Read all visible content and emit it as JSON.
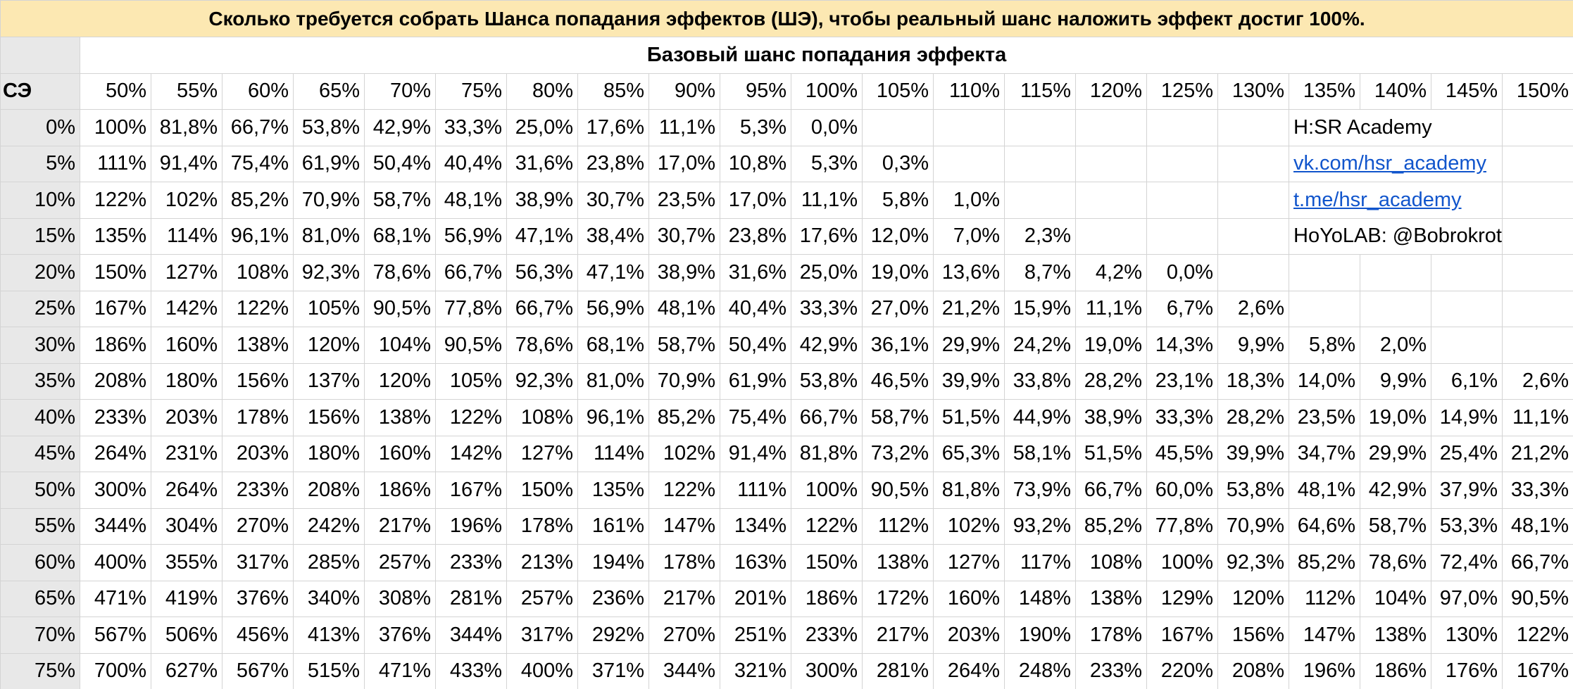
{
  "title": "Сколько требуется собрать Шанса попадания эффектов (ШЭ), чтобы реальный шанс наложить эффект достиг 100%.",
  "table": {
    "column_group": "Базовый шанс попадания эффекта",
    "corner": "СЭ",
    "columns": [
      "50%",
      "55%",
      "60%",
      "65%",
      "70%",
      "75%",
      "80%",
      "85%",
      "90%",
      "95%",
      "100%",
      "105%",
      "110%",
      "115%",
      "120%",
      "125%",
      "130%",
      "135%",
      "140%",
      "145%",
      "150%"
    ],
    "rows": [
      {
        "label": "0%",
        "values": [
          "100%",
          "81,8%",
          "66,7%",
          "53,8%",
          "42,9%",
          "33,3%",
          "25,0%",
          "17,6%",
          "11,1%",
          "5,3%",
          "0,0%"
        ]
      },
      {
        "label": "5%",
        "values": [
          "111%",
          "91,4%",
          "75,4%",
          "61,9%",
          "50,4%",
          "40,4%",
          "31,6%",
          "23,8%",
          "17,0%",
          "10,8%",
          "5,3%",
          "0,3%"
        ]
      },
      {
        "label": "10%",
        "values": [
          "122%",
          "102%",
          "85,2%",
          "70,9%",
          "58,7%",
          "48,1%",
          "38,9%",
          "30,7%",
          "23,5%",
          "17,0%",
          "11,1%",
          "5,8%",
          "1,0%"
        ]
      },
      {
        "label": "15%",
        "values": [
          "135%",
          "114%",
          "96,1%",
          "81,0%",
          "68,1%",
          "56,9%",
          "47,1%",
          "38,4%",
          "30,7%",
          "23,8%",
          "17,6%",
          "12,0%",
          "7,0%",
          "2,3%"
        ]
      },
      {
        "label": "20%",
        "values": [
          "150%",
          "127%",
          "108%",
          "92,3%",
          "78,6%",
          "66,7%",
          "56,3%",
          "47,1%",
          "38,9%",
          "31,6%",
          "25,0%",
          "19,0%",
          "13,6%",
          "8,7%",
          "4,2%",
          "0,0%"
        ]
      },
      {
        "label": "25%",
        "values": [
          "167%",
          "142%",
          "122%",
          "105%",
          "90,5%",
          "77,8%",
          "66,7%",
          "56,9%",
          "48,1%",
          "40,4%",
          "33,3%",
          "27,0%",
          "21,2%",
          "15,9%",
          "11,1%",
          "6,7%",
          "2,6%"
        ]
      },
      {
        "label": "30%",
        "values": [
          "186%",
          "160%",
          "138%",
          "120%",
          "104%",
          "90,5%",
          "78,6%",
          "68,1%",
          "58,7%",
          "50,4%",
          "42,9%",
          "36,1%",
          "29,9%",
          "24,2%",
          "19,0%",
          "14,3%",
          "9,9%",
          "5,8%",
          "2,0%"
        ]
      },
      {
        "label": "35%",
        "values": [
          "208%",
          "180%",
          "156%",
          "137%",
          "120%",
          "105%",
          "92,3%",
          "81,0%",
          "70,9%",
          "61,9%",
          "53,8%",
          "46,5%",
          "39,9%",
          "33,8%",
          "28,2%",
          "23,1%",
          "18,3%",
          "14,0%",
          "9,9%",
          "6,1%",
          "2,6%"
        ]
      },
      {
        "label": "40%",
        "values": [
          "233%",
          "203%",
          "178%",
          "156%",
          "138%",
          "122%",
          "108%",
          "96,1%",
          "85,2%",
          "75,4%",
          "66,7%",
          "58,7%",
          "51,5%",
          "44,9%",
          "38,9%",
          "33,3%",
          "28,2%",
          "23,5%",
          "19,0%",
          "14,9%",
          "11,1%"
        ]
      },
      {
        "label": "45%",
        "values": [
          "264%",
          "231%",
          "203%",
          "180%",
          "160%",
          "142%",
          "127%",
          "114%",
          "102%",
          "91,4%",
          "81,8%",
          "73,2%",
          "65,3%",
          "58,1%",
          "51,5%",
          "45,5%",
          "39,9%",
          "34,7%",
          "29,9%",
          "25,4%",
          "21,2%"
        ]
      },
      {
        "label": "50%",
        "values": [
          "300%",
          "264%",
          "233%",
          "208%",
          "186%",
          "167%",
          "150%",
          "135%",
          "122%",
          "111%",
          "100%",
          "90,5%",
          "81,8%",
          "73,9%",
          "66,7%",
          "60,0%",
          "53,8%",
          "48,1%",
          "42,9%",
          "37,9%",
          "33,3%"
        ]
      },
      {
        "label": "55%",
        "values": [
          "344%",
          "304%",
          "270%",
          "242%",
          "217%",
          "196%",
          "178%",
          "161%",
          "147%",
          "134%",
          "122%",
          "112%",
          "102%",
          "93,2%",
          "85,2%",
          "77,8%",
          "70,9%",
          "64,6%",
          "58,7%",
          "53,3%",
          "48,1%"
        ]
      },
      {
        "label": "60%",
        "values": [
          "400%",
          "355%",
          "317%",
          "285%",
          "257%",
          "233%",
          "213%",
          "194%",
          "178%",
          "163%",
          "150%",
          "138%",
          "127%",
          "117%",
          "108%",
          "100%",
          "92,3%",
          "85,2%",
          "78,6%",
          "72,4%",
          "66,7%"
        ]
      },
      {
        "label": "65%",
        "values": [
          "471%",
          "419%",
          "376%",
          "340%",
          "308%",
          "281%",
          "257%",
          "236%",
          "217%",
          "201%",
          "186%",
          "172%",
          "160%",
          "148%",
          "138%",
          "129%",
          "120%",
          "112%",
          "104%",
          "97,0%",
          "90,5%"
        ]
      },
      {
        "label": "70%",
        "values": [
          "567%",
          "506%",
          "456%",
          "413%",
          "376%",
          "344%",
          "317%",
          "292%",
          "270%",
          "251%",
          "233%",
          "217%",
          "203%",
          "190%",
          "178%",
          "167%",
          "156%",
          "147%",
          "138%",
          "130%",
          "122%"
        ]
      },
      {
        "label": "75%",
        "values": [
          "700%",
          "627%",
          "567%",
          "515%",
          "471%",
          "433%",
          "400%",
          "371%",
          "344%",
          "321%",
          "300%",
          "281%",
          "264%",
          "248%",
          "233%",
          "220%",
          "208%",
          "196%",
          "186%",
          "176%",
          "167%"
        ]
      }
    ]
  },
  "notes": [
    {
      "text": "H:SR Academy",
      "link": false
    },
    {
      "text": "vk.com/hsr_academy",
      "link": true
    },
    {
      "text": "t.me/hsr_academy",
      "link": true
    },
    {
      "text": "HoYoLAB: @Bobrokrot",
      "link": false
    }
  ]
}
